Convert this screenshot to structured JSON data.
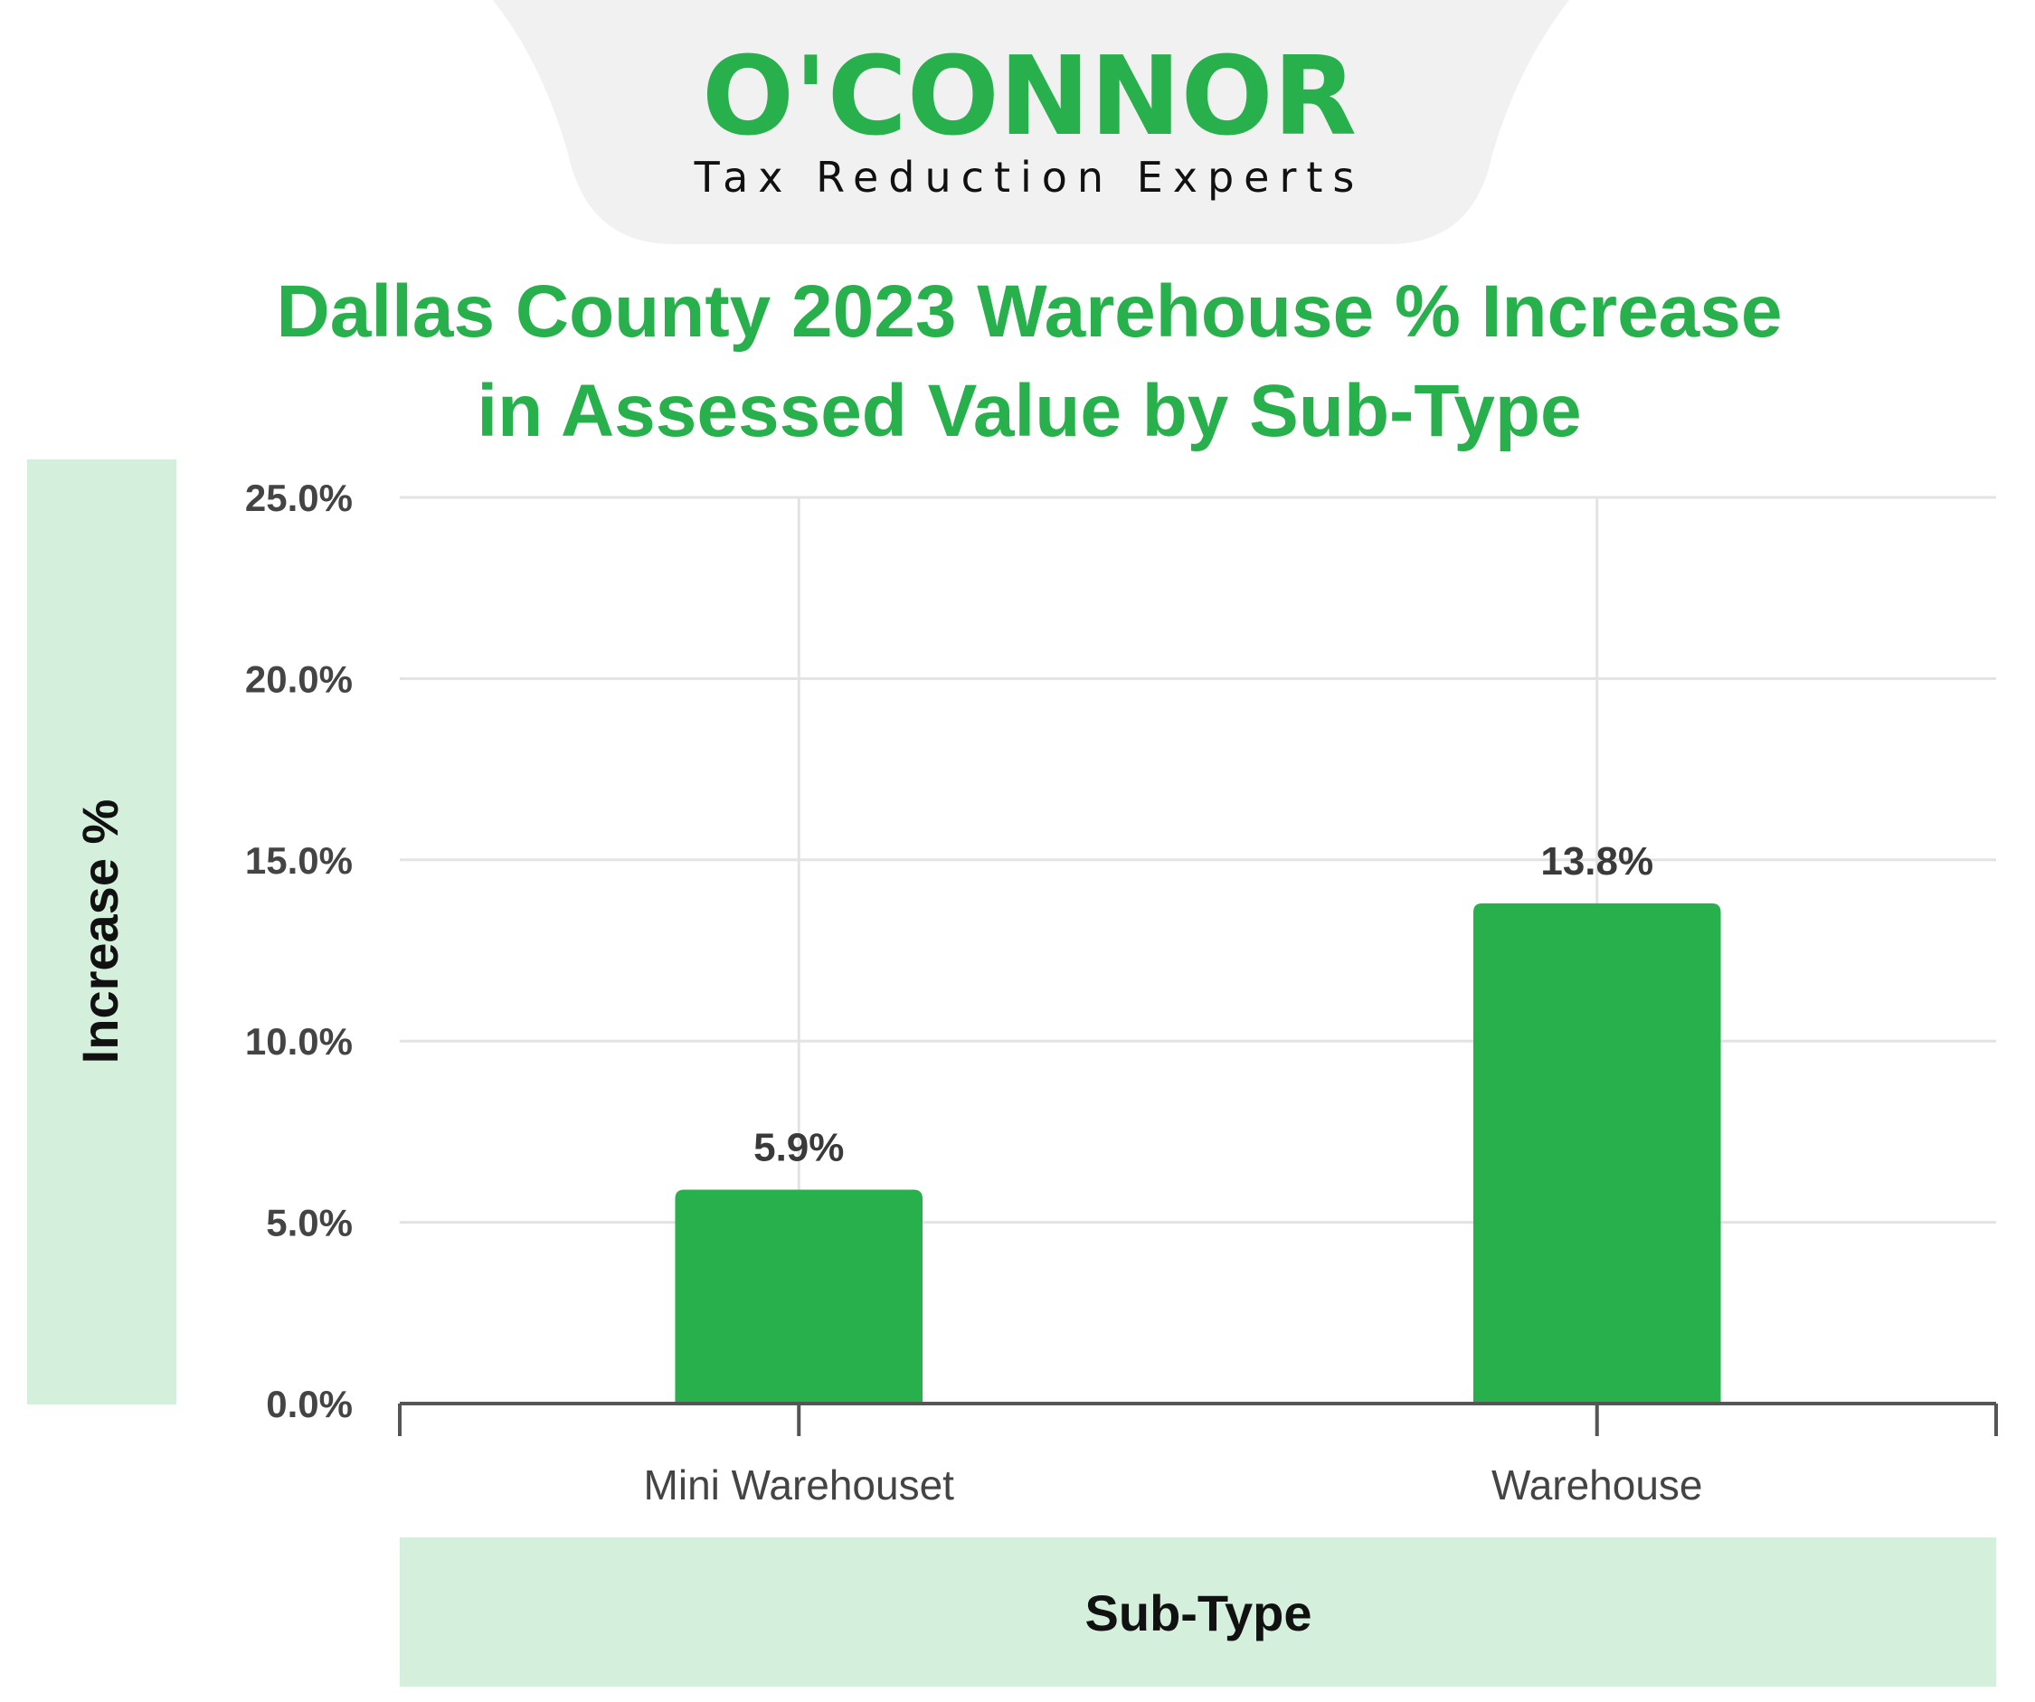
{
  "brand": {
    "name": "O'CONNOR",
    "tagline": "Tax Reduction Experts",
    "color": "#27b04b"
  },
  "chart_data": {
    "type": "bar",
    "title_line1": "Dallas County 2023 Warehouse % Increase",
    "title_line2": "in Assessed Value by Sub-Type",
    "xlabel": "Sub-Type",
    "ylabel": "Increase %",
    "categories": [
      "Mini Warehouset",
      "Warehouse"
    ],
    "values": [
      5.9,
      13.8
    ],
    "value_labels": [
      "5.9%",
      "13.8%"
    ],
    "ylim": [
      0,
      25
    ],
    "yticks": [
      0,
      5,
      10,
      15,
      20,
      25
    ],
    "ytick_labels": [
      "0.0%",
      "5.0%",
      "10.0%",
      "15.0%",
      "20.0%",
      "25.0%"
    ],
    "grid": true,
    "bar_color": "#27b04b",
    "axis_panel_color": "#d5efdd"
  }
}
